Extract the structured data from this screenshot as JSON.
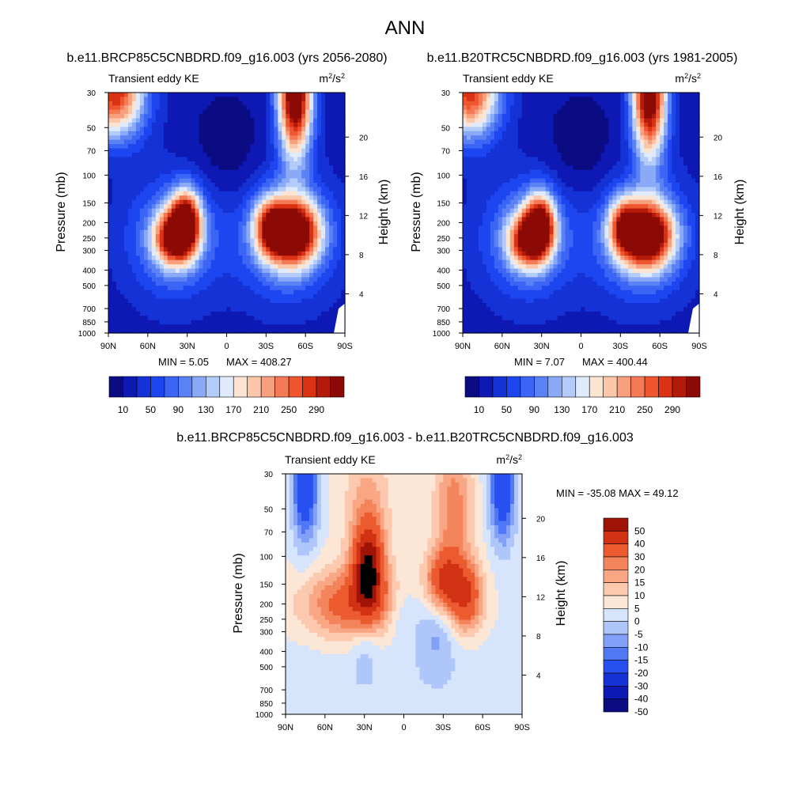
{
  "figure": {
    "title": "ANN"
  },
  "colormaps": {
    "main": [
      "#0b0b82",
      "#0e19b4",
      "#1432d6",
      "#1e46f0",
      "#3c64f5",
      "#5a82f5",
      "#8aaaf8",
      "#b4ccfa",
      "#dfeafc",
      "#fce4d2",
      "#fcc6a8",
      "#f8a07e",
      "#f47a56",
      "#ef5630",
      "#dc3214",
      "#b41a0a",
      "#8c0a05"
    ],
    "diff": [
      "#0b0b82",
      "#0e19b4",
      "#1432d6",
      "#2850f0",
      "#5078f5",
      "#82a0f8",
      "#aec6fa",
      "#d6e4fc",
      "#fce6d6",
      "#fcc8ae",
      "#f8a684",
      "#f4845c",
      "#ec5a30",
      "#d23214",
      "#a01408"
    ]
  },
  "chart_data": [
    {
      "type": "heatmap",
      "name": "rcp85",
      "title": "b.e11.BRCP85C5CNBDRD.f09_g16.003 (yrs 2056-2080)",
      "left_label": "Transient eddy KE",
      "units_base": "m",
      "units_sup1": "2",
      "units_mid": "/s",
      "units_sup2": "2",
      "xlabel": "",
      "ylabel": "Pressure (mb)",
      "ylabel_right": "Height (km)",
      "x_ticks": [
        "90N",
        "60N",
        "30N",
        "0",
        "30S",
        "60S",
        "90S"
      ],
      "x_tick_values": [
        90,
        60,
        30,
        0,
        -30,
        -60,
        -90
      ],
      "pressure_ticks": [
        "30",
        "50",
        "70",
        "100",
        "150",
        "200",
        "250",
        "300",
        "400",
        "500",
        "700",
        "850",
        "1000"
      ],
      "pressure_tick_values": [
        30,
        50,
        70,
        100,
        150,
        200,
        250,
        300,
        400,
        500,
        700,
        850,
        1000
      ],
      "height_ticks": [
        "4",
        "8",
        "12",
        "16",
        "20"
      ],
      "height_tick_values": [
        4,
        8,
        12,
        16,
        20
      ],
      "xlim": [
        90,
        -90
      ],
      "ylim_mb": [
        1000,
        30
      ],
      "min_label": "MIN =   5.05",
      "max_label": "MAX = 408.27",
      "min": 5.05,
      "max": 408.27,
      "features": [
        {
          "desc": "NH jet",
          "lat": 31,
          "p": 200,
          "amp": 300
        },
        {
          "desc": "NH jet low",
          "lat": 42,
          "p": 250,
          "amp": 220
        },
        {
          "desc": "SH jet",
          "lat": -50,
          "p": 230,
          "amp": 330
        },
        {
          "desc": "SH strat",
          "lat": -52,
          "p": 30,
          "amp": 360
        },
        {
          "desc": "NH strat",
          "lat": 85,
          "p": 30,
          "amp": 270
        }
      ],
      "colorbar_labels": [
        "10",
        "50",
        "90",
        "130",
        "170",
        "210",
        "250",
        "290"
      ],
      "colorbar_levels": [
        10,
        30,
        50,
        70,
        90,
        110,
        130,
        150,
        170,
        190,
        210,
        230,
        250,
        270,
        290,
        310
      ]
    },
    {
      "type": "heatmap",
      "name": "b20tr",
      "title": "b.e11.B20TRC5CNBDRD.f09_g16.003 (yrs 1981-2005)",
      "left_label": "Transient eddy KE",
      "units_base": "m",
      "units_sup1": "2",
      "units_mid": "/s",
      "units_sup2": "2",
      "xlabel": "",
      "ylabel": "Pressure (mb)",
      "ylabel_right": "Height (km)",
      "x_ticks": [
        "90N",
        "60N",
        "30N",
        "0",
        "30S",
        "60S",
        "90S"
      ],
      "x_tick_values": [
        90,
        60,
        30,
        0,
        -30,
        -60,
        -90
      ],
      "pressure_ticks": [
        "30",
        "50",
        "70",
        "100",
        "150",
        "200",
        "250",
        "300",
        "400",
        "500",
        "700",
        "850",
        "1000"
      ],
      "pressure_tick_values": [
        30,
        50,
        70,
        100,
        150,
        200,
        250,
        300,
        400,
        500,
        700,
        850,
        1000
      ],
      "height_ticks": [
        "4",
        "8",
        "12",
        "16",
        "20"
      ],
      "height_tick_values": [
        4,
        8,
        12,
        16,
        20
      ],
      "xlim": [
        90,
        -90
      ],
      "ylim_mb": [
        1000,
        30
      ],
      "min_label": "MIN =   7.07",
      "max_label": "MAX = 400.44",
      "min": 7.07,
      "max": 400.44,
      "features": [
        {
          "desc": "NH jet",
          "lat": 31,
          "p": 210,
          "amp": 280
        },
        {
          "desc": "NH jet low",
          "lat": 42,
          "p": 260,
          "amp": 210
        },
        {
          "desc": "SH jet",
          "lat": -50,
          "p": 240,
          "amp": 320
        },
        {
          "desc": "SH strat",
          "lat": -52,
          "p": 30,
          "amp": 350
        },
        {
          "desc": "NH strat",
          "lat": 85,
          "p": 30,
          "amp": 260
        }
      ],
      "colorbar_labels": [
        "10",
        "50",
        "90",
        "130",
        "170",
        "210",
        "250",
        "290"
      ],
      "colorbar_levels": [
        10,
        30,
        50,
        70,
        90,
        110,
        130,
        150,
        170,
        190,
        210,
        230,
        250,
        270,
        290,
        310
      ]
    },
    {
      "type": "heatmap",
      "name": "diff",
      "title": "b.e11.BRCP85C5CNBDRD.f09_g16.003 - b.e11.B20TRC5CNBDRD.f09_g16.003",
      "left_label": "Transient eddy KE",
      "units_base": "m",
      "units_sup1": "2",
      "units_mid": "/s",
      "units_sup2": "2",
      "xlabel": "",
      "ylabel": "Pressure (mb)",
      "ylabel_right": "Height (km)",
      "x_ticks": [
        "90N",
        "60N",
        "30N",
        "0",
        "30S",
        "60S",
        "90S"
      ],
      "x_tick_values": [
        90,
        60,
        30,
        0,
        -30,
        -60,
        -90
      ],
      "pressure_ticks": [
        "30",
        "50",
        "70",
        "100",
        "150",
        "200",
        "250",
        "300",
        "400",
        "500",
        "700",
        "850",
        "1000"
      ],
      "pressure_tick_values": [
        30,
        50,
        70,
        100,
        150,
        200,
        250,
        300,
        400,
        500,
        700,
        850,
        1000
      ],
      "height_ticks": [
        "4",
        "8",
        "12",
        "16",
        "20"
      ],
      "height_tick_values": [
        4,
        8,
        12,
        16,
        20
      ],
      "xlim": [
        90,
        -90
      ],
      "ylim_mb": [
        1000,
        30
      ],
      "minmax_label": "MIN = -35.08  MAX =  49.12",
      "min": -35.08,
      "max": 49.12,
      "colorbar_labels": [
        "50",
        "40",
        "30",
        "20",
        "15",
        "10",
        "5",
        "0",
        "-5",
        "-10",
        "-15",
        "-20",
        "-30",
        "-40",
        "-50"
      ],
      "colorbar_levels": [
        -50,
        -40,
        -30,
        -20,
        -15,
        -10,
        -5,
        0,
        5,
        10,
        15,
        20,
        30,
        40,
        50
      ]
    }
  ]
}
